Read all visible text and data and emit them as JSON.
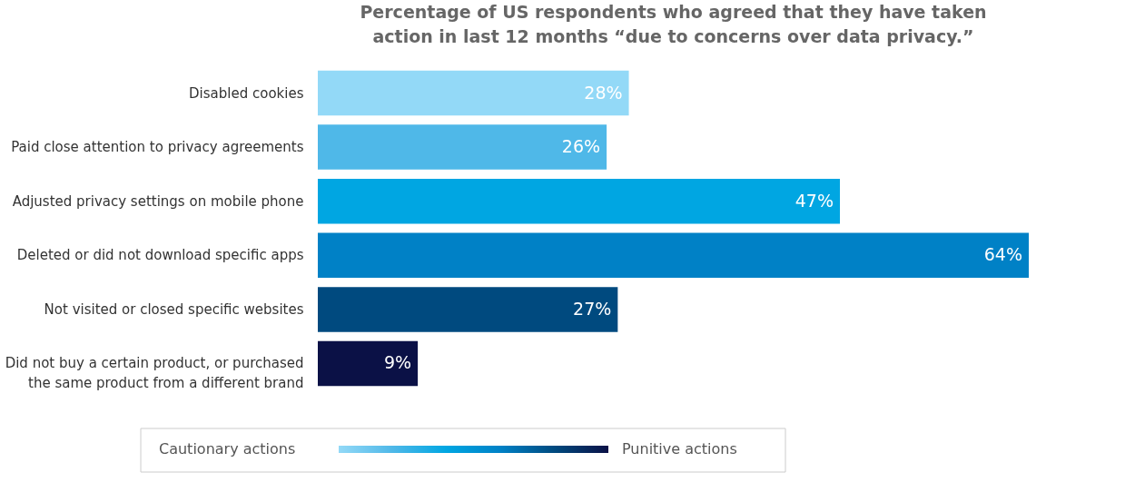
{
  "chart_data": {
    "type": "bar",
    "orientation": "horizontal",
    "title": "Percentage of US respondents who agreed that they have taken\naction in last 12 months “due to concerns over data privacy.”",
    "categories": [
      "Disabled cookies",
      "Paid close attention to privacy agreements",
      "Adjusted privacy settings on mobile phone",
      "Deleted or did not download specific apps",
      "Not visited or closed specific websites",
      "Did not buy a certain product, or purchased\nthe same product from a different brand"
    ],
    "values": [
      28,
      26,
      47,
      64,
      27,
      9
    ],
    "colors": [
      "#93d9f7",
      "#4fb8e8",
      "#00a6e2",
      "#0081c6",
      "#004a7f",
      "#0b1146"
    ],
    "value_labels": [
      "28%",
      "26%",
      "47%",
      "64%",
      "27%",
      "9%"
    ],
    "annotations": [
      "Cautionary actions",
      "Punitive actions"
    ],
    "legend": false
  }
}
